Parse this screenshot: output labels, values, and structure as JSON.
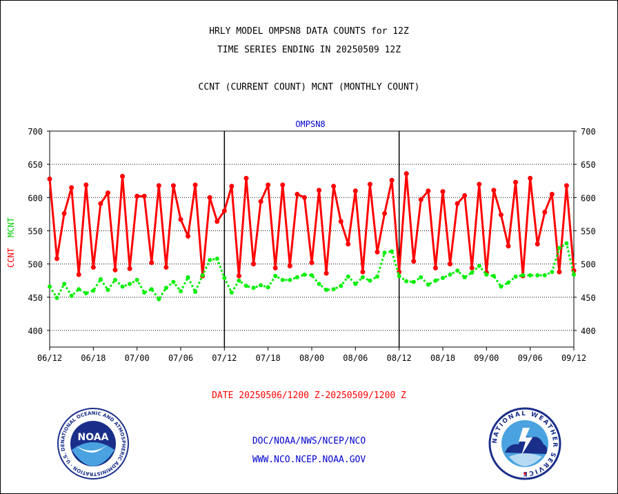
{
  "header": {
    "line1": "HRLY MODEL OMPSN8 DATA COUNTS for 12Z",
    "line2": "TIME SERIES ENDING IN 20250509 12Z",
    "line3": "CCNT (CURRENT COUNT) MCNT (MONTHLY COUNT)"
  },
  "footer": {
    "date_range": "DATE 20250506/1200 Z-20250509/1200 Z",
    "org": "DOC/NOAA/NWS/NCEP/NCO",
    "url": "WWW.NCO.NCEP.NOAA.GOV"
  },
  "logos": {
    "noaa": {
      "text": "NOAA",
      "ring_text": "NATIONAL OCEANIC AND ATMOSPHERIC ADMINISTRATION · U.S. DEPARTMENT OF COMMERCE"
    },
    "nws": {
      "ring_text": "NATIONAL WEATHER SERVICE"
    }
  },
  "colors": {
    "ccnt": "#ff0000",
    "mcnt": "#00ee00",
    "title": "#0000cc",
    "axis": "#000000"
  },
  "chart_data": {
    "type": "line",
    "title": "OMPSN8",
    "ylabel_left": [
      "CCNT",
      "MCNT"
    ],
    "ylim": [
      375,
      700
    ],
    "yticks": [
      400,
      450,
      500,
      550,
      600,
      650,
      700
    ],
    "grid": true,
    "xtick_labels": [
      "06/12",
      "06/18",
      "07/00",
      "07/06",
      "07/12",
      "07/18",
      "08/00",
      "08/06",
      "08/12",
      "08/18",
      "09/00",
      "09/06",
      "09/12"
    ],
    "day_boundaries": [
      "07/12",
      "08/12"
    ],
    "series": [
      {
        "name": "CCNT",
        "color": "#ff0000",
        "values": [
          628,
          508,
          576,
          615,
          484,
          619,
          495,
          591,
          607,
          491,
          632,
          493,
          602,
          602,
          502,
          618,
          495,
          618,
          567,
          542,
          619,
          482,
          600,
          564,
          580,
          617,
          482,
          629,
          500,
          594,
          619,
          494,
          619,
          497,
          605,
          600,
          502,
          611,
          486,
          617,
          564,
          530,
          610,
          488,
          620,
          518,
          576,
          626,
          488,
          636,
          504,
          597,
          610,
          494,
          609,
          500,
          591,
          603,
          494,
          620,
          487,
          611,
          574,
          527,
          623,
          482,
          629,
          530,
          578,
          605,
          488,
          618,
          490
        ]
      },
      {
        "name": "MCNT",
        "color": "#00ee00",
        "values": [
          466,
          449,
          470,
          452,
          462,
          456,
          460,
          477,
          461,
          476,
          466,
          470,
          476,
          457,
          462,
          447,
          464,
          473,
          459,
          480,
          458,
          483,
          506,
          508,
          479,
          457,
          475,
          467,
          464,
          468,
          465,
          482,
          476,
          476,
          480,
          484,
          483,
          470,
          461,
          462,
          467,
          481,
          470,
          480,
          475,
          481,
          517,
          519,
          482,
          474,
          473,
          480,
          469,
          475,
          479,
          484,
          490,
          480,
          487,
          497,
          484,
          482,
          466,
          472,
          481,
          483,
          483,
          483,
          483,
          488,
          524,
          531,
          484
        ]
      }
    ]
  }
}
